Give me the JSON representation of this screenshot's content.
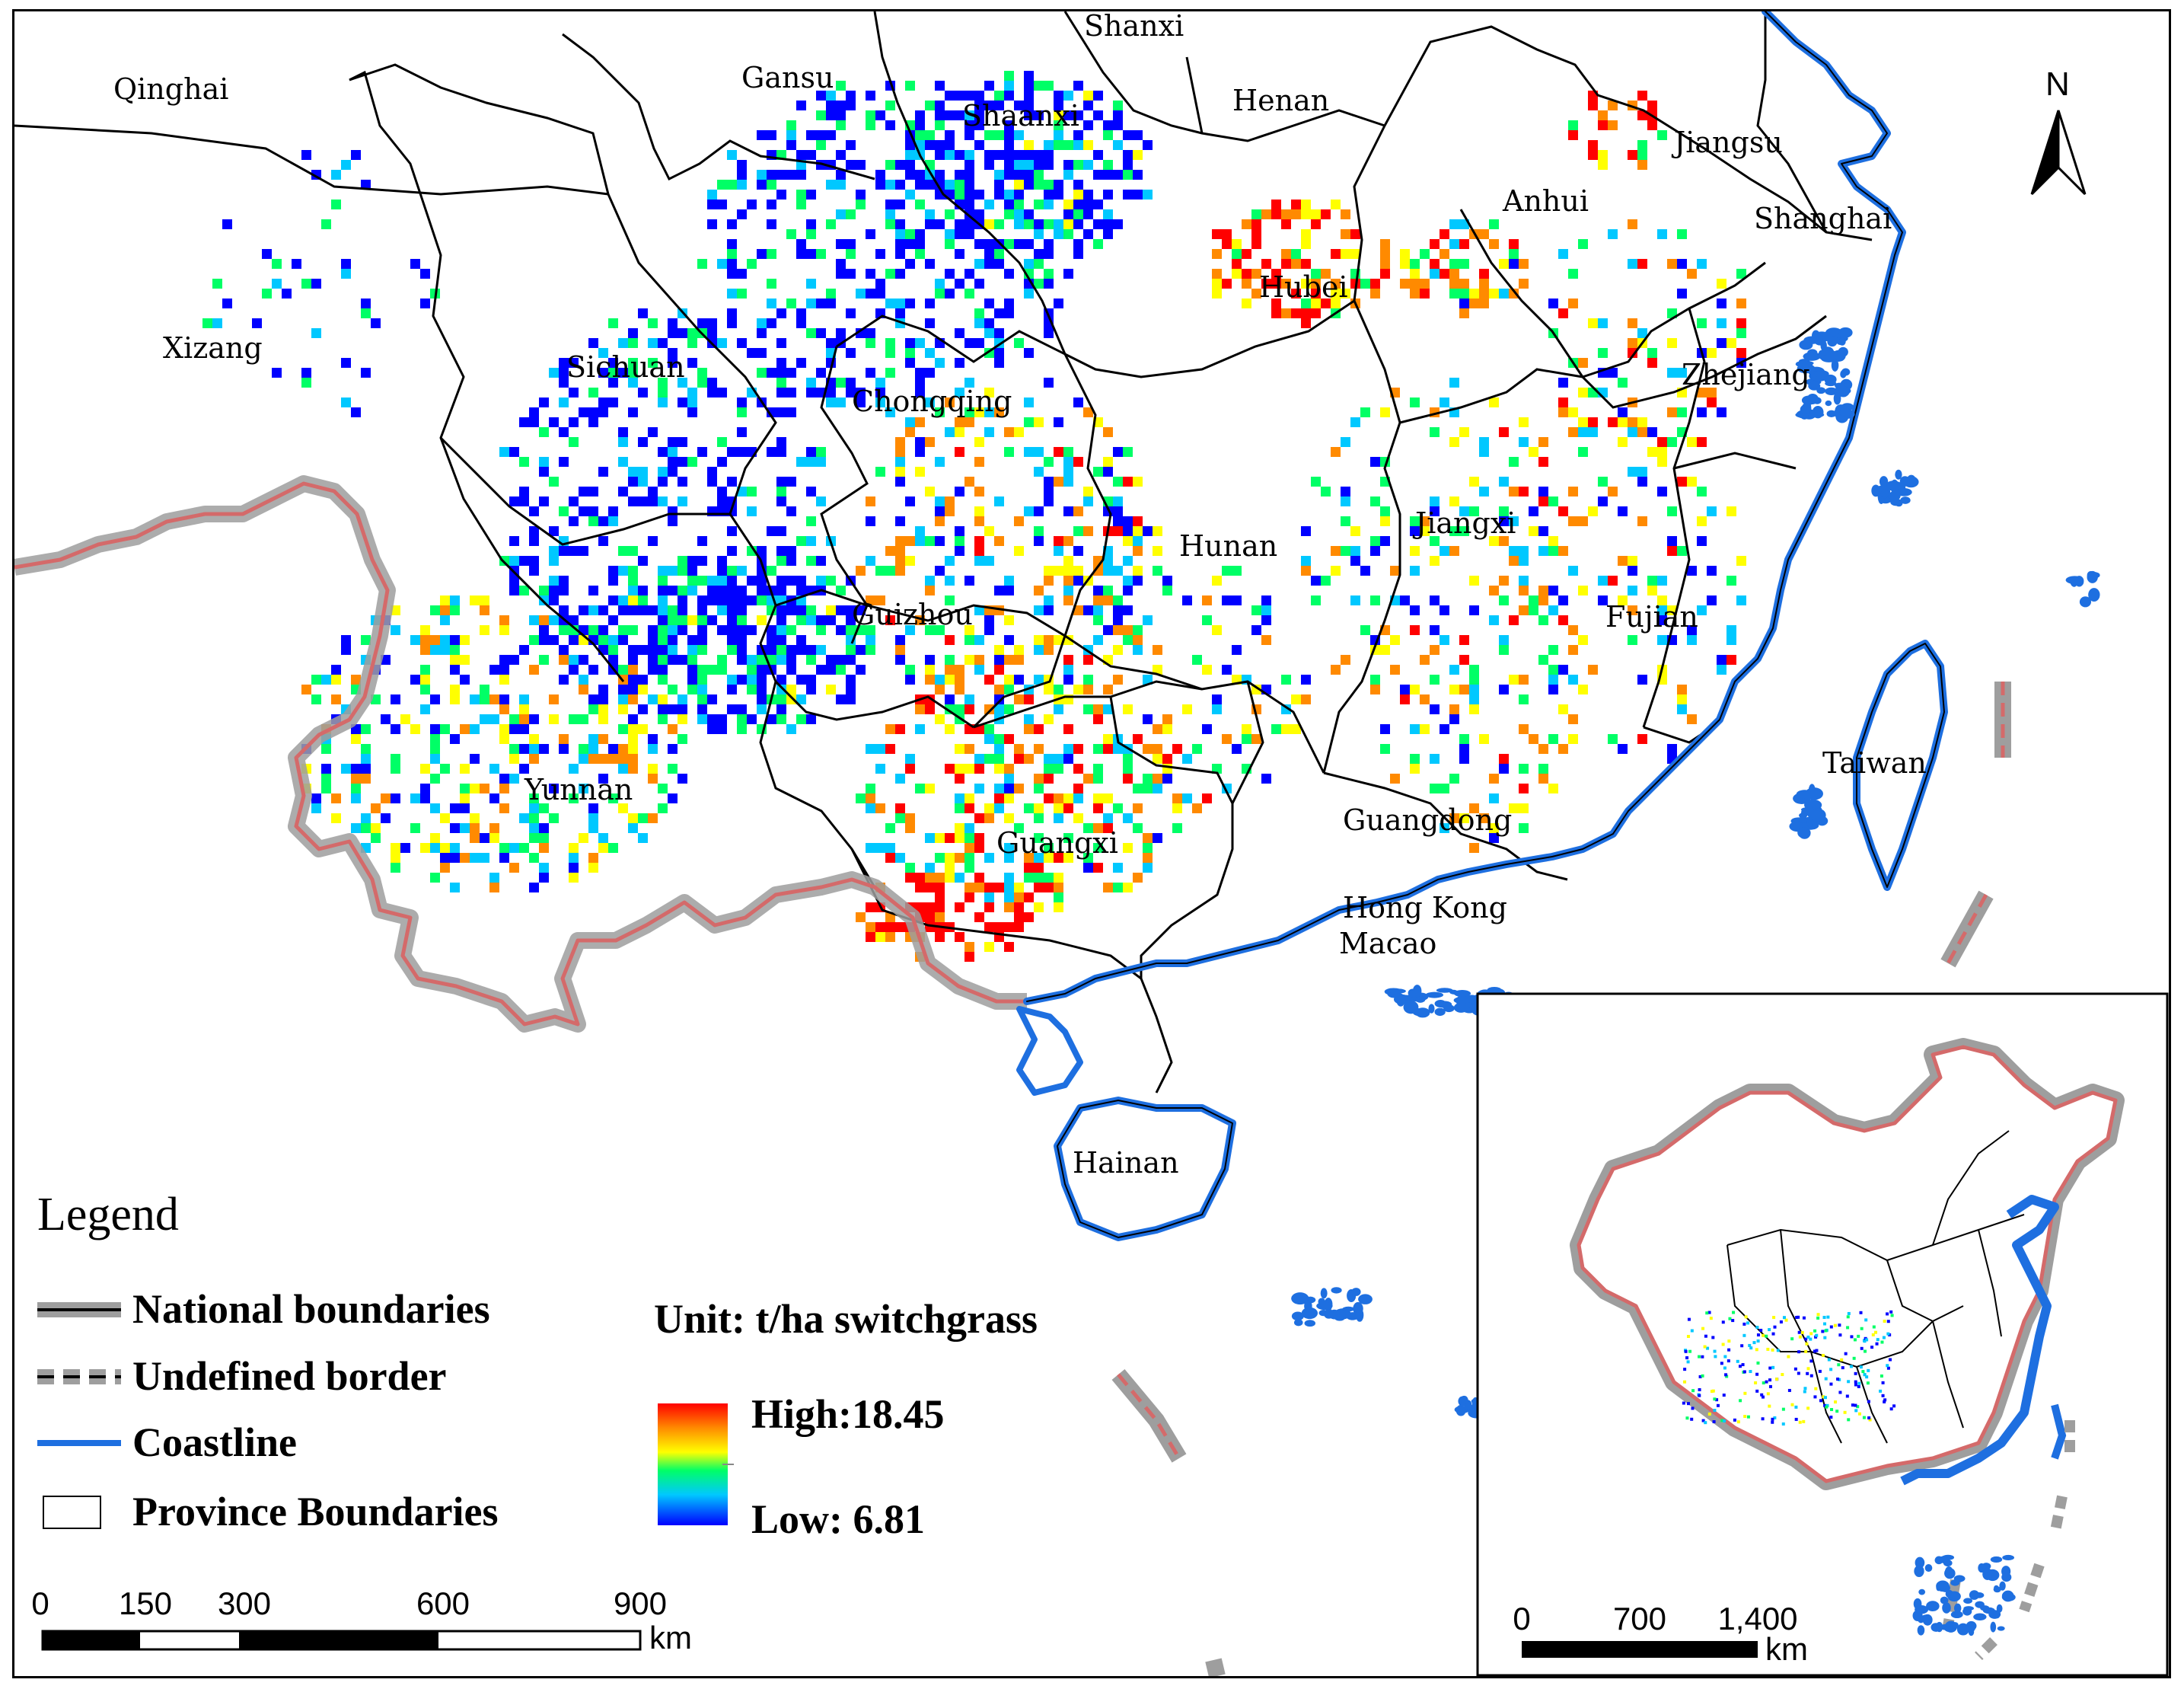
{
  "map": {
    "north_label": "N",
    "provinces": [
      {
        "id": "qinghai",
        "label": "Qinghai"
      },
      {
        "id": "gansu",
        "label": "Gansu"
      },
      {
        "id": "shanxi",
        "label": "Shanxi"
      },
      {
        "id": "shaanxi",
        "label": "Shaanxi"
      },
      {
        "id": "henan",
        "label": "Henan"
      },
      {
        "id": "jiangsu",
        "label": "Jiangsu"
      },
      {
        "id": "anhui",
        "label": "Anhui"
      },
      {
        "id": "shanghai",
        "label": "Shanghai"
      },
      {
        "id": "hubei",
        "label": "Hubei"
      },
      {
        "id": "xizang",
        "label": "Xizang"
      },
      {
        "id": "sichuan",
        "label": "Sichuan"
      },
      {
        "id": "chongqing",
        "label": "Chongqing"
      },
      {
        "id": "zhejiang",
        "label": "Zhejiang"
      },
      {
        "id": "jiangxi",
        "label": "Jiangxi"
      },
      {
        "id": "hunan",
        "label": "Hunan"
      },
      {
        "id": "guizhou",
        "label": "Guizhou"
      },
      {
        "id": "fujian",
        "label": "Fujian"
      },
      {
        "id": "taiwan",
        "label": "Taiwan"
      },
      {
        "id": "yunnan",
        "label": "Yunnan"
      },
      {
        "id": "guangxi",
        "label": "Guangxi"
      },
      {
        "id": "guangdong",
        "label": "Guangdong"
      },
      {
        "id": "hongkong",
        "label": "Hong Kong"
      },
      {
        "id": "macao",
        "label": "Macao"
      },
      {
        "id": "hainan",
        "label": "Hainan"
      }
    ]
  },
  "legend": {
    "title": "Legend",
    "items": [
      {
        "id": "national",
        "label": "National boundaries"
      },
      {
        "id": "undefined",
        "label": "Undefined border"
      },
      {
        "id": "coastline",
        "label": "Coastline"
      },
      {
        "id": "province",
        "label": "Province Boundaries"
      }
    ]
  },
  "colorbar": {
    "unit_label": "Unit: t/ha switchgrass",
    "high_label": "High:18.45",
    "low_label": "Low: 6.81",
    "high_value": 18.45,
    "low_value": 6.81,
    "colors": [
      "#ff0000",
      "#ff8a00",
      "#ffff00",
      "#00ff66",
      "#00c8ff",
      "#0000ff"
    ]
  },
  "scalebar": {
    "ticks": [
      "0",
      "150",
      "300",
      "600",
      "900"
    ],
    "unit": "km"
  },
  "inset": {
    "ticks": [
      "0",
      "700",
      "1,400"
    ],
    "unit": "km"
  },
  "colors": {
    "national_border": "#9e9e9e",
    "national_core": "#d46a6a",
    "coastline": "#1e6fe0",
    "province_line": "#000000"
  }
}
